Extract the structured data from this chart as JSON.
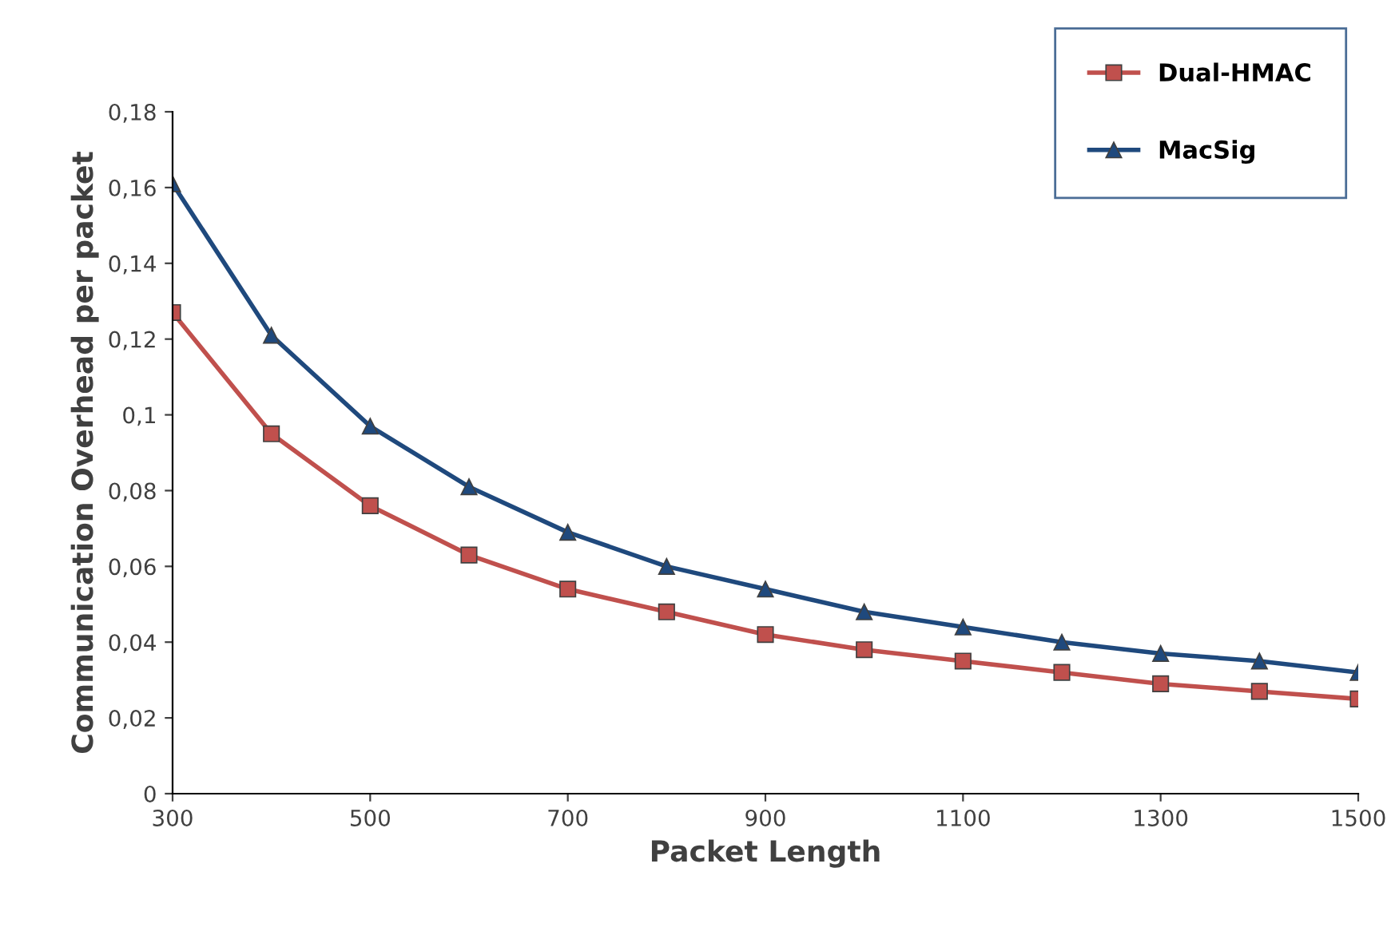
{
  "chart_data": {
    "type": "line",
    "xlabel": "Packet Length",
    "ylabel": "Communication Overhead per packet",
    "x": [
      300,
      400,
      500,
      600,
      700,
      800,
      900,
      1000,
      1100,
      1200,
      1300,
      1400,
      1500
    ],
    "series": [
      {
        "name": "Dual-HMAC",
        "color": "#c0504d",
        "marker": "square",
        "values": [
          0.127,
          0.095,
          0.076,
          0.063,
          0.054,
          0.048,
          0.042,
          0.038,
          0.035,
          0.032,
          0.029,
          0.027,
          0.025
        ]
      },
      {
        "name": "MacSig",
        "color": "#1f497d",
        "marker": "triangle",
        "values": [
          0.161,
          0.121,
          0.097,
          0.081,
          0.069,
          0.06,
          0.054,
          0.048,
          0.044,
          0.04,
          0.037,
          0.035,
          0.032
        ]
      }
    ],
    "xlim": [
      300,
      1500
    ],
    "xticks": [
      300,
      500,
      700,
      900,
      1100,
      1300,
      1500
    ],
    "ylim": [
      0,
      0.18
    ],
    "yticks": [
      {
        "value": 0,
        "label": "0"
      },
      {
        "value": 0.02,
        "label": "0,02"
      },
      {
        "value": 0.04,
        "label": "0,04"
      },
      {
        "value": 0.06,
        "label": "0,06"
      },
      {
        "value": 0.08,
        "label": "0,08"
      },
      {
        "value": 0.1,
        "label": "0,1"
      },
      {
        "value": 0.12,
        "label": "0,12"
      },
      {
        "value": 0.14,
        "label": "0,14"
      },
      {
        "value": 0.16,
        "label": "0,16"
      },
      {
        "value": 0.18,
        "label": "0,18"
      }
    ],
    "grid": false,
    "legend": "top right",
    "line_style": "solid"
  }
}
